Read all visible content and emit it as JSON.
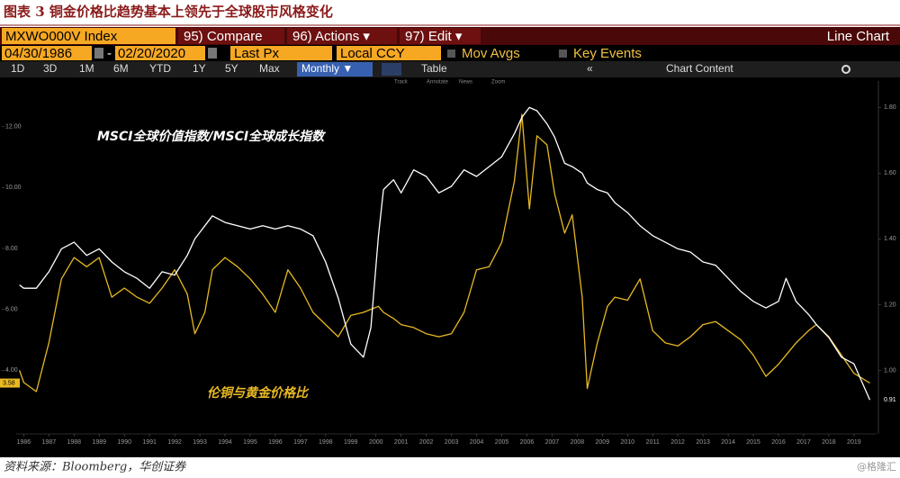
{
  "figure_title": "图表 3 铜金价格比趋势基本上领先于全球股市风格变化",
  "toolbar": {
    "security": "MXWO000V Index",
    "compare": "95) Compare",
    "actions": "96) Actions ▾",
    "edit": "97) Edit ▾",
    "chart_type": "Line Chart",
    "start_date": "04/30/1986",
    "date_sep": "-",
    "end_date": "02/20/2020",
    "field": "Last Px",
    "currency": "Local CCY",
    "mov_avgs": "Mov Avgs",
    "key_events": "Key Events",
    "periods": [
      "1D",
      "3D",
      "1M",
      "6M",
      "YTD",
      "1Y",
      "5Y",
      "Max"
    ],
    "frequency": "Monthly ▼",
    "table": "Table",
    "collapse": "«",
    "chart_content": "Chart Content",
    "tools": [
      "Track",
      "Annotate",
      "News",
      "Zoom"
    ]
  },
  "chart_data": {
    "type": "line",
    "x": [
      1986.33,
      1986.5,
      1987,
      1987.5,
      1988,
      1988.5,
      1989,
      1989.5,
      1990,
      1990.5,
      1991,
      1991.5,
      1992,
      1992.5,
      1993,
      1993.3,
      1993.7,
      1994,
      1994.5,
      1995,
      1995.5,
      1996,
      1996.5,
      1997,
      1997.5,
      1998,
      1998.5,
      1999,
      1999.5,
      2000,
      2000.3,
      2000.6,
      2000.8,
      2001.2,
      2001.5,
      2002,
      2002.5,
      2003,
      2003.5,
      2004,
      2004.5,
      2005,
      2005.5,
      2006,
      2006.3,
      2006.6,
      2006.9,
      2007.3,
      2007.6,
      2008,
      2008.3,
      2008.7,
      2008.9,
      2009.3,
      2009.7,
      2010,
      2010.5,
      2011,
      2011.5,
      2012,
      2012.5,
      2013,
      2013.5,
      2014,
      2014.5,
      2015,
      2015.5,
      2016,
      2016.5,
      2016.8,
      2017.2,
      2017.7,
      2018,
      2018.5,
      2019,
      2019.5,
      2020.13
    ],
    "series": [
      {
        "name": "伦铜与黄金价格比",
        "color": "#e8b923",
        "values": [
          4.0,
          3.6,
          3.3,
          4.9,
          7.0,
          7.7,
          7.4,
          7.7,
          6.4,
          6.7,
          6.4,
          6.2,
          6.7,
          7.3,
          6.5,
          5.2,
          5.9,
          7.3,
          7.7,
          7.4,
          7.0,
          6.5,
          5.9,
          7.3,
          6.7,
          5.9,
          5.5,
          5.1,
          5.8,
          5.9,
          6.0,
          6.1,
          5.9,
          5.7,
          5.5,
          5.4,
          5.2,
          5.1,
          5.2,
          5.9,
          7.3,
          7.4,
          8.2,
          10.2,
          12.4,
          9.3,
          11.7,
          11.4,
          9.8,
          8.5,
          9.1,
          6.4,
          3.4,
          4.9,
          6.1,
          6.4,
          6.3,
          7.0,
          5.3,
          4.9,
          4.8,
          5.1,
          5.5,
          5.6,
          5.3,
          5.0,
          4.5,
          3.8,
          4.2,
          4.5,
          4.9,
          5.3,
          5.5,
          5.1,
          4.5,
          3.9,
          3.58
        ]
      },
      {
        "name": "MSCI全球价值指数/MSCI全球成长指数",
        "color": "#ffffff",
        "axis": "y2",
        "values": [
          1.26,
          1.25,
          1.25,
          1.3,
          1.37,
          1.39,
          1.35,
          1.37,
          1.33,
          1.3,
          1.28,
          1.25,
          1.3,
          1.29,
          1.35,
          1.4,
          1.44,
          1.47,
          1.45,
          1.44,
          1.43,
          1.44,
          1.43,
          1.44,
          1.43,
          1.41,
          1.33,
          1.22,
          1.08,
          1.04,
          1.13,
          1.41,
          1.55,
          1.58,
          1.54,
          1.61,
          1.59,
          1.54,
          1.56,
          1.61,
          1.59,
          1.62,
          1.65,
          1.72,
          1.77,
          1.8,
          1.79,
          1.75,
          1.71,
          1.63,
          1.62,
          1.6,
          1.57,
          1.55,
          1.54,
          1.51,
          1.48,
          1.44,
          1.41,
          1.39,
          1.37,
          1.36,
          1.33,
          1.32,
          1.28,
          1.24,
          1.21,
          1.19,
          1.21,
          1.28,
          1.21,
          1.17,
          1.14,
          1.1,
          1.04,
          1.02,
          0.91
        ]
      }
    ],
    "xlim": [
      1986.2,
      2020.4
    ],
    "xticks": [
      {
        "value": 1986.5,
        "label": "1986"
      },
      {
        "value": 1987.5,
        "label": "1987"
      },
      {
        "value": 1988.5,
        "label": "1988"
      },
      {
        "value": 1989.5,
        "label": "1989"
      },
      {
        "value": 1990.5,
        "label": "1990"
      },
      {
        "value": 1991.5,
        "label": "1991"
      },
      {
        "value": 1992.5,
        "label": "1992"
      },
      {
        "value": 1993.5,
        "label": "1993"
      },
      {
        "value": 1994.5,
        "label": "1994"
      },
      {
        "value": 1995.5,
        "label": "1995"
      },
      {
        "value": 1996.5,
        "label": "1996"
      },
      {
        "value": 1997.5,
        "label": "1997"
      },
      {
        "value": 1998.5,
        "label": "1998"
      },
      {
        "value": 1999.5,
        "label": "1999"
      },
      {
        "value": 2000.5,
        "label": "2000"
      },
      {
        "value": 2001.5,
        "label": "2001"
      },
      {
        "value": 2002.5,
        "label": "2002"
      },
      {
        "value": 2003.5,
        "label": "2003"
      },
      {
        "value": 2004.5,
        "label": "2004"
      },
      {
        "value": 2005.5,
        "label": "2005"
      },
      {
        "value": 2006.5,
        "label": "2006"
      },
      {
        "value": 2007.5,
        "label": "2007"
      },
      {
        "value": 2008.5,
        "label": "2008"
      },
      {
        "value": 2009.5,
        "label": "2009"
      },
      {
        "value": 2010.5,
        "label": "2010"
      },
      {
        "value": 2011.5,
        "label": "2011"
      },
      {
        "value": 2012.5,
        "label": "2012"
      },
      {
        "value": 2013.5,
        "label": "2013"
      },
      {
        "value": 2014.5,
        "label": "2014"
      },
      {
        "value": 2015.5,
        "label": "2015"
      },
      {
        "value": 2016.5,
        "label": "2016"
      },
      {
        "value": 2017.5,
        "label": "2017"
      },
      {
        "value": 2018.5,
        "label": "2018"
      },
      {
        "value": 2019.5,
        "label": "2019"
      }
    ],
    "ylim": [
      2,
      13.2
    ],
    "yticks": [
      {
        "value": 4,
        "label": "4.00"
      },
      {
        "value": 6,
        "label": "6.00"
      },
      {
        "value": 8,
        "label": "8.00"
      },
      {
        "value": 10,
        "label": "10.00"
      },
      {
        "value": 12,
        "label": "12.00"
      }
    ],
    "y2lim": [
      0.815,
      1.853
    ],
    "y2ticks": [
      {
        "value": 1,
        "label": "1.00"
      },
      {
        "value": 1.2,
        "label": "1.20"
      },
      {
        "value": 1.4,
        "label": "1.40"
      },
      {
        "value": 1.6,
        "label": "1.60"
      },
      {
        "value": 1.8,
        "label": "1.80"
      }
    ],
    "grid": false
  },
  "source": "资料来源：Bloomberg，华创证券",
  "watermark": "@格隆汇"
}
